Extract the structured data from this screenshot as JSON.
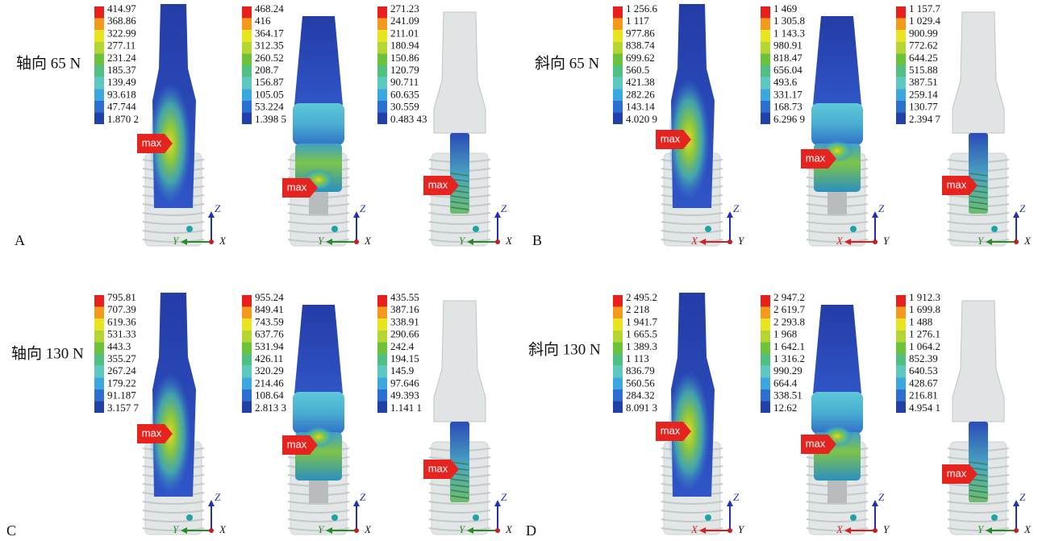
{
  "panels": [
    {
      "letter": "A",
      "load": "轴向 65 N",
      "models": [
        {
          "legend": [
            "414.97",
            "368.86",
            "322.99",
            "277.11",
            "231.24",
            "185.37",
            "139.49",
            "93.618",
            "47.744",
            "1.870 2"
          ],
          "max": "max",
          "axes": {
            "z": "Z",
            "left": "Y",
            "right": "X"
          }
        },
        {
          "legend": [
            "468.24",
            "416",
            "364.17",
            "312.35",
            "260.52",
            "208.7",
            "156.87",
            "105.05",
            "53.224",
            "1.398 5"
          ],
          "max": "max",
          "axes": {
            "z": "Z",
            "left": "Y",
            "right": "X"
          }
        },
        {
          "legend": [
            "271.23",
            "241.09",
            "211.01",
            "180.94",
            "150.86",
            "120.79",
            "90.711",
            "60.635",
            "30.559",
            "0.483 43"
          ],
          "max": "max",
          "axes": {
            "z": "Z",
            "left": "Y",
            "right": "X"
          }
        }
      ]
    },
    {
      "letter": "B",
      "load": "斜向 65 N",
      "models": [
        {
          "legend": [
            "1 256.6",
            "1 117",
            "977.86",
            "838.74",
            "699.62",
            "560.5",
            "421.38",
            "282.26",
            "143.14",
            "4.020 9"
          ],
          "max": "max",
          "axes": {
            "z": "Z",
            "left": "X",
            "right": "Y"
          }
        },
        {
          "legend": [
            "1 469",
            "1 305.8",
            "1 143.3",
            "980.91",
            "818.47",
            "656.04",
            "493.6",
            "331.17",
            "168.73",
            "6.296 9"
          ],
          "max": "max",
          "axes": {
            "z": "Z",
            "left": "X",
            "right": "Y"
          }
        },
        {
          "legend": [
            "1 157.7",
            "1 029.4",
            "900.99",
            "772.62",
            "644.25",
            "515.88",
            "387.51",
            "259.14",
            "130.77",
            "2.394 7"
          ],
          "max": "max",
          "axes": {
            "z": "Z",
            "left": "Y",
            "right": "X"
          }
        }
      ]
    },
    {
      "letter": "C",
      "load": "轴向 130 N",
      "models": [
        {
          "legend": [
            "795.81",
            "707.39",
            "619.36",
            "531.33",
            "443.3",
            "355.27",
            "267.24",
            "179.22",
            "91.187",
            "3.157 7"
          ],
          "max": "max",
          "axes": {
            "z": "Z",
            "left": "Y",
            "right": "X"
          }
        },
        {
          "legend": [
            "955.24",
            "849.41",
            "743.59",
            "637.76",
            "531.94",
            "426.11",
            "320.29",
            "214.46",
            "108.64",
            "2.813 3"
          ],
          "max": "max",
          "axes": {
            "z": "Z",
            "left": "Y",
            "right": "X"
          }
        },
        {
          "legend": [
            "435.55",
            "387.16",
            "338.91",
            "290.66",
            "242.4",
            "194.15",
            "145.9",
            "97.646",
            "49.393",
            "1.141 1"
          ],
          "max": "max",
          "axes": {
            "z": "Z",
            "left": "Y",
            "right": "X"
          }
        }
      ]
    },
    {
      "letter": "D",
      "load": "斜向 130 N",
      "models": [
        {
          "legend": [
            "2 495.2",
            "2 218",
            "1 941.7",
            "1 665.5",
            "1 389.3",
            "1 113",
            "836.79",
            "560.56",
            "284.32",
            "8.091 3"
          ],
          "max": "max",
          "axes": {
            "z": "Z",
            "left": "X",
            "right": "Y"
          }
        },
        {
          "legend": [
            "2 947.2",
            "2 619.7",
            "2 293.8",
            "1 968",
            "1 642.1",
            "1 316.2",
            "990.29",
            "664.4",
            "338.51",
            "12.62"
          ],
          "max": "max",
          "axes": {
            "z": "Z",
            "left": "X",
            "right": "Y"
          }
        },
        {
          "legend": [
            "1 912.3",
            "1 699.8",
            "1 488",
            "1 276.1",
            "1 064.2",
            "852.39",
            "640.53",
            "428.67",
            "216.81",
            "4.954 1"
          ],
          "max": "max",
          "axes": {
            "z": "Z",
            "left": "Y",
            "right": "X"
          }
        }
      ]
    }
  ]
}
